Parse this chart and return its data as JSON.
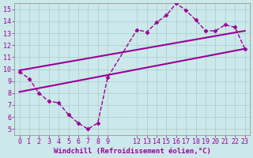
{
  "bg_color": "#cce8ea",
  "grid_color": "#aacccc",
  "line_color": "#990099",
  "marker": "D",
  "markersize": 2.5,
  "linewidth": 1.0,
  "xlabel": "Windchill (Refroidissement éolien,°C)",
  "xlabel_fontsize": 6.5,
  "tick_fontsize": 6,
  "xlim": [
    -0.5,
    23.5
  ],
  "ylim": [
    4.5,
    15.5
  ],
  "xticks": [
    0,
    1,
    2,
    3,
    4,
    5,
    6,
    7,
    8,
    9,
    12,
    13,
    14,
    15,
    16,
    17,
    18,
    19,
    20,
    21,
    22,
    23
  ],
  "yticks": [
    5,
    6,
    7,
    8,
    9,
    10,
    11,
    12,
    13,
    14,
    15
  ],
  "series1_x": [
    0,
    1,
    2,
    3,
    4,
    5,
    6,
    7,
    8,
    9,
    12,
    13,
    14,
    15,
    16,
    17,
    18,
    19,
    20,
    21,
    22,
    23
  ],
  "series1_y": [
    9.8,
    9.2,
    8.0,
    7.3,
    7.2,
    6.2,
    5.5,
    5.0,
    5.5,
    9.3,
    13.3,
    13.1,
    13.9,
    14.5,
    15.5,
    14.9,
    14.1,
    13.2,
    13.2,
    13.7,
    13.5,
    11.7
  ],
  "series2_x": [
    0,
    23
  ],
  "series2_y": [
    9.9,
    13.2
  ],
  "series3_x": [
    0,
    23
  ],
  "series3_y": [
    8.1,
    11.7
  ]
}
